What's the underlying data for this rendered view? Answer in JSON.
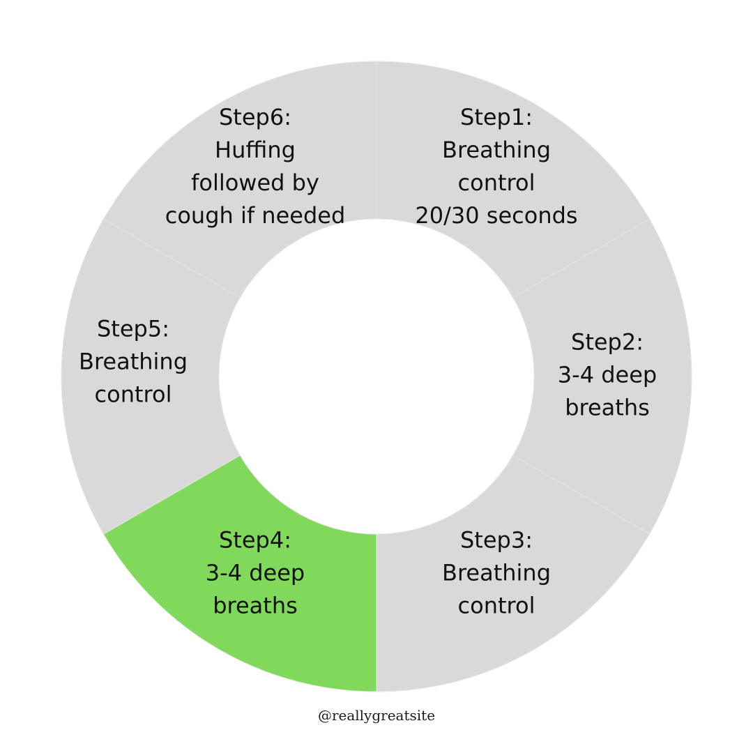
{
  "colors": {
    "segment_default": "#d9d9d9",
    "segment_highlight": "#80d95a",
    "divider": "#e6e6e6",
    "text": "#111111",
    "background": "#ffffff"
  },
  "steps": [
    {
      "lines": [
        "Step1:",
        "Breathing",
        "control",
        "20/30 seconds"
      ],
      "highlighted": false
    },
    {
      "lines": [
        "Step2:",
        "3-4 deep",
        "breaths"
      ],
      "highlighted": false
    },
    {
      "lines": [
        "Step3:",
        "Breathing",
        "control"
      ],
      "highlighted": false
    },
    {
      "lines": [
        "Step4:",
        "3-4 deep",
        "breaths"
      ],
      "highlighted": true
    },
    {
      "lines": [
        "Step5:",
        "Breathing",
        "control"
      ],
      "highlighted": false
    },
    {
      "lines": [
        "Step6:",
        "Huffing",
        "followed by",
        "cough if needed"
      ],
      "highlighted": false
    }
  ],
  "footer": {
    "handle": "@reallygreatsite"
  }
}
